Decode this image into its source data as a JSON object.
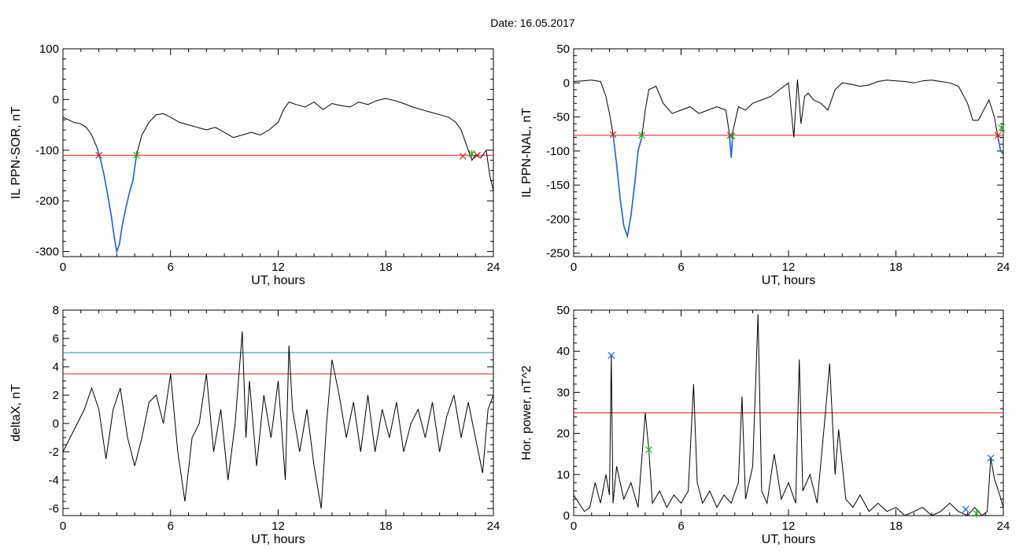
{
  "figure": {
    "title": "Date:  16.05.2017"
  },
  "chart_data": [
    {
      "type": "line",
      "xlabel": "UT, hours",
      "ylabel": "IL PPN-SOR, nT",
      "xlim": [
        0,
        24
      ],
      "ylim": [
        -310,
        100
      ],
      "xticks": [
        0,
        6,
        12,
        18,
        24
      ],
      "yticks": [
        100,
        0,
        -100,
        -200,
        -300
      ],
      "colors": {
        "series": "#000000",
        "highlight": "#1f5fd6",
        "threshold": "#d62020",
        "red_marker": "#d62020",
        "green_marker": "#22a022"
      },
      "x": [
        0,
        0.3,
        0.6,
        1.0,
        1.3,
        1.6,
        1.9,
        2.1,
        2.3,
        2.5,
        2.7,
        2.85,
        3.0,
        3.15,
        3.3,
        3.5,
        3.7,
        3.9,
        4.1,
        4.4,
        4.8,
        5.2,
        5.6,
        6.0,
        6.5,
        7.0,
        7.5,
        8.0,
        8.5,
        9.0,
        9.5,
        10.0,
        10.5,
        11.0,
        11.5,
        12.0,
        12.3,
        12.6,
        13.0,
        13.5,
        14.0,
        14.5,
        15.0,
        15.5,
        16.0,
        16.5,
        17.0,
        17.5,
        18.0,
        18.5,
        19.0,
        19.5,
        20.0,
        20.5,
        21.0,
        21.5,
        21.9,
        22.2,
        22.5,
        22.8,
        23.0,
        23.3,
        23.6,
        23.8,
        24.0
      ],
      "values": [
        -35,
        -40,
        -45,
        -48,
        -55,
        -70,
        -95,
        -120,
        -150,
        -190,
        -230,
        -270,
        -300,
        -285,
        -250,
        -215,
        -185,
        -160,
        -110,
        -70,
        -45,
        -30,
        -28,
        -35,
        -45,
        -50,
        -55,
        -60,
        -55,
        -65,
        -75,
        -70,
        -65,
        -70,
        -60,
        -45,
        -20,
        -5,
        -10,
        -15,
        -5,
        -20,
        -8,
        -12,
        -15,
        -5,
        -10,
        -2,
        2,
        -2,
        -8,
        -15,
        -20,
        -25,
        -30,
        -35,
        -45,
        -60,
        -90,
        -120,
        -110,
        -115,
        -100,
        -150,
        -180
      ],
      "highlight_x": [
        1.9,
        2.1,
        2.3,
        2.5,
        2.7,
        2.85,
        3.0,
        3.15,
        3.3,
        3.5,
        3.7,
        3.9,
        4.1
      ],
      "highlight_values": [
        -95,
        -120,
        -150,
        -190,
        -230,
        -270,
        -300,
        -285,
        -250,
        -215,
        -185,
        -160,
        -110
      ],
      "threshold": -110,
      "markers_red": [
        {
          "x": 2.0,
          "y": -110
        },
        {
          "x": 22.3,
          "y": -112
        },
        {
          "x": 23.1,
          "y": -110
        }
      ],
      "markers_green": [
        {
          "x": 4.1,
          "y": -110
        },
        {
          "x": 22.8,
          "y": -107
        }
      ]
    },
    {
      "type": "line",
      "xlabel": "UT, hours",
      "ylabel": "IL PPN-NAL, nT",
      "xlim": [
        0,
        24
      ],
      "ylim": [
        -255,
        50
      ],
      "xticks": [
        0,
        6,
        12,
        18,
        24
      ],
      "yticks": [
        50,
        0,
        -50,
        -100,
        -150,
        -200,
        -250
      ],
      "colors": {
        "series": "#000000",
        "highlight": "#1f5fd6",
        "threshold": "#d62020",
        "red_marker": "#d62020",
        "green_marker": "#22a022"
      },
      "x": [
        0,
        0.5,
        1.0,
        1.5,
        1.8,
        2.0,
        2.2,
        2.4,
        2.6,
        2.8,
        3.0,
        3.2,
        3.4,
        3.6,
        3.8,
        4.0,
        4.2,
        4.6,
        5.0,
        5.5,
        6.0,
        6.5,
        7.0,
        7.5,
        8.0,
        8.5,
        8.7,
        8.8,
        8.9,
        9.2,
        9.6,
        10.0,
        10.5,
        11.0,
        11.5,
        12.0,
        12.3,
        12.5,
        12.7,
        12.9,
        13.1,
        13.4,
        13.8,
        14.2,
        14.6,
        15.0,
        15.5,
        16.0,
        16.5,
        17.0,
        17.5,
        18.0,
        18.5,
        19.0,
        19.5,
        20.0,
        20.5,
        21.0,
        21.5,
        22.0,
        22.3,
        22.6,
        22.9,
        23.2,
        23.5,
        23.7,
        23.85,
        24.0
      ],
      "values": [
        2,
        3,
        4,
        2,
        -20,
        -45,
        -75,
        -120,
        -170,
        -210,
        -225,
        -195,
        -150,
        -100,
        -80,
        -40,
        -10,
        -5,
        -30,
        -45,
        -40,
        -35,
        -45,
        -40,
        -35,
        -40,
        -75,
        -110,
        -70,
        -35,
        -40,
        -30,
        -25,
        -20,
        -10,
        0,
        -80,
        5,
        -60,
        -20,
        -15,
        -25,
        -30,
        -40,
        -10,
        0,
        -2,
        -5,
        -3,
        2,
        4,
        3,
        2,
        0,
        3,
        4,
        2,
        0,
        -5,
        -30,
        -55,
        -55,
        -40,
        -25,
        -50,
        -80,
        -100,
        -105
      ],
      "highlight_x": [
        2.2,
        2.4,
        2.6,
        2.8,
        3.0,
        3.2,
        3.4,
        3.6,
        3.8,
        8.7,
        8.8,
        8.9,
        23.7,
        23.85,
        24.0
      ],
      "highlight_values": [
        -75,
        -120,
        -170,
        -210,
        -225,
        -195,
        -150,
        -100,
        -80,
        -75,
        -110,
        -70,
        -80,
        -100,
        -105
      ],
      "threshold": -77,
      "markers_red": [
        {
          "x": 2.2,
          "y": -76
        },
        {
          "x": 8.75,
          "y": -77
        },
        {
          "x": 23.7,
          "y": -77
        }
      ],
      "markers_green": [
        {
          "x": 3.8,
          "y": -77
        },
        {
          "x": 8.85,
          "y": -78
        },
        {
          "x": 23.9,
          "y": -66
        }
      ]
    },
    {
      "type": "line",
      "xlabel": "UT, hours",
      "ylabel": "deltaX, nT",
      "xlim": [
        0,
        24
      ],
      "ylim": [
        -6.5,
        8
      ],
      "xticks": [
        0,
        6,
        12,
        18,
        24
      ],
      "yticks": [
        8,
        6,
        4,
        2,
        0,
        -2,
        -4,
        -6
      ],
      "colors": {
        "series": "#000000",
        "threshold_upper": "#1a8f9c",
        "threshold_lower": "#d62020"
      },
      "x": [
        0,
        0.4,
        0.8,
        1.2,
        1.6,
        2.0,
        2.4,
        2.8,
        3.2,
        3.6,
        4.0,
        4.4,
        4.8,
        5.2,
        5.6,
        6.0,
        6.4,
        6.8,
        7.2,
        7.6,
        8.0,
        8.4,
        8.8,
        9.2,
        9.6,
        10.0,
        10.2,
        10.4,
        10.8,
        11.2,
        11.6,
        12.0,
        12.4,
        12.6,
        12.8,
        13.2,
        13.6,
        14.0,
        14.4,
        14.7,
        15.0,
        15.4,
        15.8,
        16.2,
        16.6,
        17.0,
        17.4,
        17.8,
        18.2,
        18.6,
        19.0,
        19.4,
        19.8,
        20.2,
        20.6,
        21.0,
        21.4,
        21.8,
        22.2,
        22.6,
        23.0,
        23.4,
        23.7,
        24.0
      ],
      "values": [
        -2,
        -1,
        0,
        1,
        2.5,
        1,
        -2.5,
        1,
        2.5,
        -1,
        -3,
        -1,
        1.5,
        2,
        0,
        3.5,
        -2,
        -5.5,
        -1,
        0,
        3.5,
        -2,
        1,
        -4,
        0,
        6.5,
        -1,
        3,
        -3,
        2,
        -1,
        3,
        -4,
        5.5,
        1,
        -2,
        1,
        -3,
        -6,
        0,
        4.5,
        2,
        -1,
        1.5,
        -2,
        2,
        -2,
        1,
        -1,
        1.5,
        -2,
        0,
        1,
        -1,
        1.5,
        -2,
        0.5,
        2,
        -1,
        1.5,
        -1,
        -3.5,
        1,
        2
      ],
      "thresholds": [
        5,
        3.5
      ]
    },
    {
      "type": "line",
      "xlabel": "UT, hours",
      "ylabel": "Hor. power, nT^2",
      "xlim": [
        0,
        24
      ],
      "ylim": [
        0,
        50
      ],
      "xticks": [
        0,
        6,
        12,
        18,
        24
      ],
      "yticks": [
        50,
        40,
        30,
        20,
        10,
        0
      ],
      "colors": {
        "series": "#000000",
        "threshold": "#d62020",
        "blue_marker": "#1f5fd6",
        "green_marker": "#22a022"
      },
      "x": [
        0,
        0.3,
        0.6,
        0.9,
        1.2,
        1.5,
        1.8,
        2.0,
        2.1,
        2.2,
        2.4,
        2.8,
        3.2,
        3.6,
        4.0,
        4.2,
        4.4,
        4.8,
        5.2,
        5.6,
        6.0,
        6.4,
        6.7,
        6.9,
        7.2,
        7.6,
        8.0,
        8.4,
        8.8,
        9.2,
        9.4,
        9.6,
        10.0,
        10.3,
        10.5,
        10.8,
        11.2,
        11.6,
        12.0,
        12.4,
        12.6,
        12.8,
        13.2,
        13.6,
        14.0,
        14.3,
        14.6,
        14.8,
        15.2,
        15.6,
        16.0,
        16.5,
        17.0,
        17.5,
        18.0,
        18.5,
        19.0,
        19.5,
        20.0,
        20.5,
        21.0,
        21.5,
        22.0,
        22.4,
        22.8,
        23.1,
        23.3,
        23.5,
        23.8,
        24.0
      ],
      "values": [
        5,
        3,
        1,
        2,
        8,
        3,
        10,
        5,
        39,
        3,
        12,
        4,
        8,
        2,
        25,
        16,
        3,
        6,
        2,
        5,
        3,
        6,
        32,
        8,
        3,
        6,
        2,
        5,
        3,
        8,
        29,
        4,
        12,
        49,
        6,
        3,
        15,
        4,
        8,
        3,
        38,
        6,
        10,
        3,
        22,
        37,
        10,
        21,
        4,
        2,
        5,
        1,
        3,
        1,
        2,
        0,
        1,
        2,
        0,
        1,
        3,
        1,
        0,
        2,
        0,
        1,
        14,
        9,
        5,
        2
      ],
      "threshold": 25,
      "markers_blue": [
        {
          "x": 2.1,
          "y": 39
        },
        {
          "x": 21.9,
          "y": 1.5
        },
        {
          "x": 23.3,
          "y": 14
        }
      ],
      "markers_green": [
        {
          "x": 4.2,
          "y": 16
        },
        {
          "x": 22.5,
          "y": 0.5
        }
      ]
    }
  ]
}
